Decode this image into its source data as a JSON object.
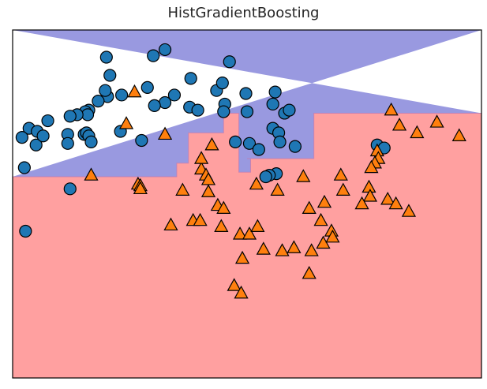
{
  "chart_data": {
    "type": "scatter",
    "title": "HistGradientBoosting",
    "xlabel": "",
    "ylabel": "",
    "xlim": [
      -1.5,
      2.5
    ],
    "ylim": [
      -0.9,
      1.4
    ],
    "xticks": [],
    "yticks": [],
    "grid": false,
    "legend": "none",
    "colors": {
      "region_class_0": "#9999e0",
      "region_class_1": "#ffa0a0",
      "class_0_marker": "#1f77b4",
      "class_1_marker": "#ff7f0e",
      "marker_edge": "#000000"
    },
    "decision_boundary": [
      [
        -1.5,
        0.43
      ],
      [
        -0.1,
        0.43
      ],
      [
        -0.1,
        0.52
      ],
      [
        0.0,
        0.52
      ],
      [
        0.0,
        0.72
      ],
      [
        0.3,
        0.72
      ],
      [
        0.3,
        0.85
      ],
      [
        0.43,
        0.85
      ],
      [
        0.43,
        0.46
      ],
      [
        0.53,
        0.46
      ],
      [
        0.53,
        0.55
      ],
      [
        0.5,
        0.55
      ],
      [
        1.07,
        0.55
      ],
      [
        1.07,
        0.85
      ],
      [
        2.5,
        0.85
      ]
    ],
    "series": [
      {
        "class": 0,
        "marker": "circle",
        "points": [
          [
            -0.3,
            1.23
          ],
          [
            -0.2,
            1.27
          ],
          [
            -0.7,
            1.22
          ],
          [
            -0.67,
            1.1
          ],
          [
            -0.35,
            1.02
          ],
          [
            -0.12,
            0.97
          ],
          [
            -0.2,
            0.92
          ],
          [
            -0.29,
            0.9
          ],
          [
            -0.57,
            0.97
          ],
          [
            -0.69,
            0.96
          ],
          [
            -0.71,
            1.0
          ],
          [
            -0.77,
            0.93
          ],
          [
            -0.85,
            0.87
          ],
          [
            -0.88,
            0.86
          ],
          [
            -0.86,
            0.84
          ],
          [
            -0.95,
            0.84
          ],
          [
            -1.01,
            0.83
          ],
          [
            -1.2,
            0.8
          ],
          [
            -1.36,
            0.75
          ],
          [
            -1.29,
            0.73
          ],
          [
            -1.3,
            0.64
          ],
          [
            -1.24,
            0.7
          ],
          [
            -1.42,
            0.69
          ],
          [
            -1.03,
            0.71
          ],
          [
            -0.89,
            0.71
          ],
          [
            -0.87,
            0.72
          ],
          [
            -0.85,
            0.7
          ],
          [
            -1.03,
            0.65
          ],
          [
            -0.83,
            0.66
          ],
          [
            -0.4,
            0.67
          ],
          [
            -0.58,
            0.73
          ],
          [
            -1.4,
            0.49
          ],
          [
            0.02,
            1.08
          ],
          [
            0.01,
            0.89
          ],
          [
            0.08,
            0.87
          ],
          [
            0.24,
            1.0
          ],
          [
            0.29,
            1.05
          ],
          [
            0.49,
            0.98
          ],
          [
            0.5,
            0.86
          ],
          [
            0.35,
            1.19
          ],
          [
            0.31,
            0.91
          ],
          [
            0.3,
            0.86
          ],
          [
            0.74,
            0.99
          ],
          [
            0.72,
            0.91
          ],
          [
            0.82,
            0.85
          ],
          [
            0.86,
            0.87
          ],
          [
            0.72,
            0.75
          ],
          [
            0.77,
            0.72
          ],
          [
            0.52,
            0.65
          ],
          [
            0.4,
            0.66
          ],
          [
            0.6,
            0.61
          ],
          [
            0.78,
            0.66
          ],
          [
            0.91,
            0.63
          ],
          [
            0.75,
            0.45
          ],
          [
            0.69,
            0.44
          ],
          [
            0.66,
            0.43
          ],
          [
            1.61,
            0.64
          ],
          [
            1.67,
            0.62
          ],
          [
            -1.01,
            0.35
          ],
          [
            -1.39,
            0.07
          ]
        ]
      },
      {
        "class": 1,
        "marker": "triangle",
        "points": [
          [
            -0.46,
            0.99
          ],
          [
            -0.53,
            0.78
          ],
          [
            -0.2,
            0.71
          ],
          [
            -0.83,
            0.44
          ],
          [
            -0.43,
            0.38
          ],
          [
            -0.41,
            0.37
          ],
          [
            -0.41,
            0.35
          ],
          [
            -0.05,
            0.34
          ],
          [
            0.11,
            0.48
          ],
          [
            0.11,
            0.55
          ],
          [
            0.15,
            0.44
          ],
          [
            0.2,
            0.64
          ],
          [
            0.17,
            0.41
          ],
          [
            0.17,
            0.33
          ],
          [
            0.25,
            0.24
          ],
          [
            0.3,
            0.22
          ],
          [
            -0.15,
            0.11
          ],
          [
            0.04,
            0.14
          ],
          [
            0.28,
            0.1
          ],
          [
            0.44,
            0.05
          ],
          [
            0.52,
            0.05
          ],
          [
            0.59,
            0.1
          ],
          [
            0.46,
            -0.11
          ],
          [
            0.64,
            -0.05
          ],
          [
            0.39,
            -0.29
          ],
          [
            0.1,
            0.14
          ],
          [
            0.58,
            0.38
          ],
          [
            0.76,
            0.34
          ],
          [
            0.98,
            0.43
          ],
          [
            1.16,
            0.26
          ],
          [
            1.3,
            0.44
          ],
          [
            1.32,
            0.34
          ],
          [
            1.54,
            0.36
          ],
          [
            1.55,
            0.3
          ],
          [
            1.48,
            0.25
          ],
          [
            1.7,
            0.28
          ],
          [
            1.77,
            0.25
          ],
          [
            1.88,
            0.2
          ],
          [
            1.61,
            0.6
          ],
          [
            1.62,
            0.55
          ],
          [
            1.59,
            0.52
          ],
          [
            1.56,
            0.49
          ],
          [
            1.8,
            0.77
          ],
          [
            1.95,
            0.72
          ],
          [
            1.73,
            0.87
          ],
          [
            2.12,
            0.79
          ],
          [
            2.31,
            0.7
          ],
          [
            1.03,
            0.22
          ],
          [
            1.13,
            0.14
          ],
          [
            1.22,
            0.07
          ],
          [
            1.15,
            -0.01
          ],
          [
            1.23,
            0.03
          ],
          [
            1.05,
            -0.06
          ],
          [
            0.9,
            -0.04
          ],
          [
            0.8,
            -0.06
          ],
          [
            1.03,
            -0.21
          ],
          [
            0.45,
            -0.34
          ]
        ]
      }
    ]
  }
}
